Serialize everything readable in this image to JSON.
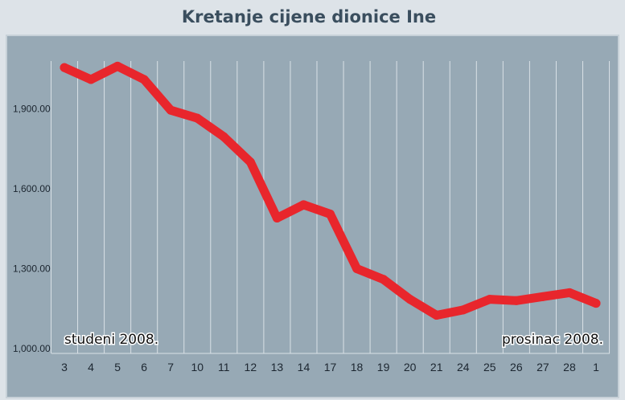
{
  "chart_data": {
    "type": "line",
    "title": "Kretanje cijene dionice Ine",
    "xlabel": "",
    "ylabel": "",
    "categories": [
      "3",
      "4",
      "5",
      "6",
      "7",
      "10",
      "11",
      "12",
      "13",
      "14",
      "17",
      "18",
      "19",
      "20",
      "21",
      "24",
      "25",
      "26",
      "27",
      "28",
      "1"
    ],
    "y_ticks": [
      "1,000.00",
      "1,300.00",
      "1,600.00",
      "1,900.00"
    ],
    "ylim": [
      1000,
      2100
    ],
    "grid": "vertical",
    "series": [
      {
        "values": [
          2055,
          2010,
          2060,
          2010,
          1895,
          1865,
          1795,
          1700,
          1490,
          1540,
          1505,
          1300,
          1260,
          1185,
          1125,
          1145,
          1185,
          1180,
          1195,
          1210,
          1170
        ]
      }
    ],
    "annotations": {
      "start_period": "studeni 2008.",
      "end_period": "prosinac 2008."
    },
    "colors": {
      "line": "#e8262c",
      "plot_background": "#97a9b5",
      "page_background": "#dde3e8",
      "title": "#3a4e5e"
    }
  }
}
